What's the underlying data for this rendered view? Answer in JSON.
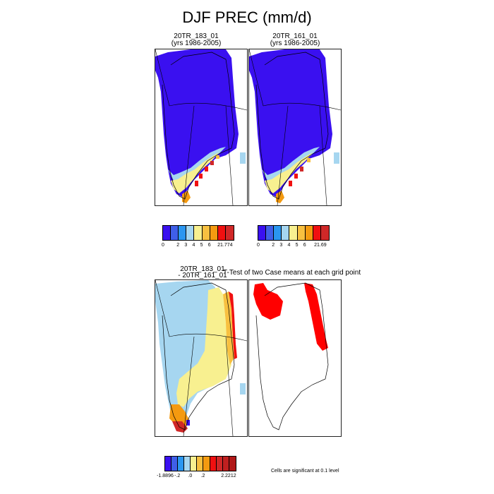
{
  "figure": {
    "title": "DJF PREC (mm/d)",
    "significance_note": "Cells are significant at 0.1 level"
  },
  "chart_data": [
    {
      "type": "heatmap",
      "panel": "case-1",
      "title_line1": "20TR_183_01",
      "title_line2": "(yrs 1986-2005)",
      "colorbar": {
        "colors": [
          "#3a10f0",
          "#3f5fe8",
          "#2a96f0",
          "#a6d6f0",
          "#f8f090",
          "#f8c040",
          "#f49a10",
          "#f01010",
          "#d02828"
        ],
        "tick_labels": [
          "0",
          "",
          "2",
          "3",
          "4",
          "5",
          "6",
          "",
          "21.774"
        ]
      }
    },
    {
      "type": "heatmap",
      "panel": "case-2",
      "title_line1": "20TR_161_01",
      "title_line2": "(yrs 1986-2005)",
      "colorbar": {
        "colors": [
          "#3a10f0",
          "#3f5fe8",
          "#2a96f0",
          "#a6d6f0",
          "#f8f090",
          "#f8c040",
          "#f49a10",
          "#f01010",
          "#d02828"
        ],
        "tick_labels": [
          "0",
          "",
          "2",
          "3",
          "4",
          "5",
          "6",
          "",
          "21.69"
        ]
      }
    },
    {
      "type": "heatmap",
      "panel": "difference",
      "title_line1": "20TR_183_01",
      "title_line2": "- 20TR_161_01",
      "colorbar": {
        "colors": [
          "#3a10f0",
          "#3f5fe8",
          "#2a96f0",
          "#a6d6f0",
          "#f8f090",
          "#f8c040",
          "#f49a10",
          "#f01010",
          "#d02828",
          "#c02020",
          "#b01818"
        ],
        "tick_labels": [
          "-1.8896",
          "",
          "-.2",
          "",
          ".0",
          "",
          ".2",
          "",
          "",
          "",
          "2.2212"
        ]
      }
    },
    {
      "type": "heatmap",
      "panel": "t-test",
      "title_line1": "T-Test of two Case means at each grid point",
      "colors": {
        "significant": "#ff0000"
      }
    }
  ]
}
